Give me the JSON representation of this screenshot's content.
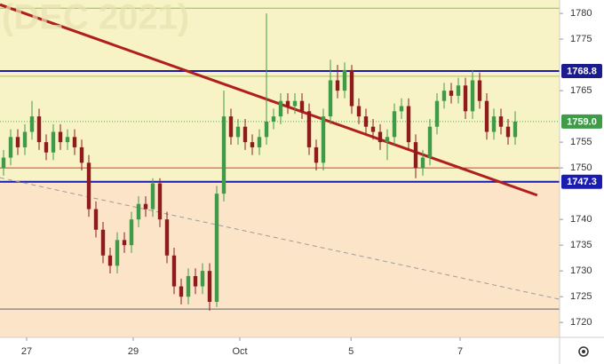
{
  "chart_data": {
    "type": "candlestick",
    "watermark": "(DEC 2021)",
    "open": [
      1750,
      1752,
      1756,
      1754,
      1757,
      1760,
      1755,
      1753,
      1757,
      1755,
      1756,
      1754,
      1751,
      1742,
      1738,
      1733,
      1731,
      1736,
      1735,
      1740,
      1743,
      1742,
      1747,
      1740,
      1733,
      1727,
      1725,
      1729,
      1727,
      1730,
      1724,
      1745,
      1760,
      1756,
      1758,
      1755,
      1754,
      1756,
      1759,
      1760,
      1763,
      1762,
      1763,
      1761,
      1754,
      1751,
      1760,
      1767,
      1765,
      1769,
      1762,
      1760,
      1758,
      1757,
      1755,
      1756,
      1761,
      1762,
      1755,
      1750,
      1752,
      1758,
      1763,
      1765,
      1764,
      1766,
      1761,
      1767,
      1763,
      1757,
      1760,
      1758,
      1756
    ],
    "high": [
      1753.5,
      1757.5,
      1757.5,
      1758.5,
      1763,
      1761.5,
      1756.5,
      1758.5,
      1758.5,
      1757.5,
      1757.5,
      1755.5,
      1752.5,
      1743.5,
      1739.5,
      1734.5,
      1737.5,
      1737.5,
      1741.5,
      1744.5,
      1744.5,
      1748,
      1748,
      1741.5,
      1734.5,
      1728.5,
      1730.5,
      1730.5,
      1731.5,
      1731.5,
      1746.5,
      1765,
      1761.5,
      1759.5,
      1759.5,
      1756.5,
      1757.5,
      1780,
      1761.5,
      1764.5,
      1764.5,
      1764.5,
      1764.5,
      1762.5,
      1755.5,
      1761.5,
      1771,
      1770,
      1770.5,
      1770,
      1763.5,
      1761.5,
      1759.5,
      1758.5,
      1757.5,
      1762.5,
      1763.5,
      1763.5,
      1756.5,
      1753.5,
      1759.5,
      1764.5,
      1766.5,
      1766.5,
      1767.5,
      1767.5,
      1769,
      1768.5,
      1764.5,
      1761.5,
      1761.5,
      1759.5,
      1761
    ],
    "low": [
      1748.5,
      1750.5,
      1752.5,
      1752.5,
      1755.5,
      1753.5,
      1751.5,
      1751.5,
      1753.5,
      1753.5,
      1752.5,
      1749.5,
      1740.5,
      1736.5,
      1731.5,
      1729.5,
      1729.5,
      1733.5,
      1733.5,
      1738.5,
      1740.5,
      1740.5,
      1738.5,
      1731.5,
      1725.5,
      1723.5,
      1723.5,
      1725.5,
      1725.5,
      1722.3,
      1723,
      1743.5,
      1754.5,
      1754.5,
      1753.5,
      1752.5,
      1752.5,
      1754.5,
      1757.5,
      1758.5,
      1760.5,
      1760.5,
      1759.5,
      1752.5,
      1749.5,
      1749.5,
      1758.5,
      1763.5,
      1763.5,
      1760.5,
      1758.5,
      1756.5,
      1755.5,
      1753.5,
      1751.5,
      1754.5,
      1759.5,
      1753.5,
      1748,
      1748.5,
      1750.5,
      1756.5,
      1761.5,
      1762.5,
      1762.5,
      1759.5,
      1759.5,
      1761.5,
      1755.5,
      1755.5,
      1756.5,
      1754.5,
      1754.5
    ],
    "close": [
      1752,
      1756,
      1754,
      1757,
      1760,
      1755,
      1753,
      1757,
      1755,
      1756,
      1754,
      1751,
      1742,
      1738,
      1733,
      1731,
      1736,
      1735,
      1740,
      1743,
      1742,
      1747,
      1740,
      1733,
      1727,
      1725,
      1729,
      1727,
      1730,
      1724,
      1745,
      1760,
      1756,
      1758,
      1755,
      1754,
      1756,
      1759,
      1760,
      1763,
      1762,
      1763,
      1761,
      1754,
      1751,
      1760,
      1767,
      1765,
      1769,
      1762,
      1760,
      1758,
      1757,
      1755,
      1756,
      1761,
      1762,
      1755,
      1750,
      1752,
      1758,
      1763,
      1765,
      1764,
      1766,
      1761,
      1767,
      1763,
      1757,
      1760,
      1758,
      1756,
      1759
    ],
    "up_color": "#3f9b48",
    "down_color": "#8e1c1c",
    "xlim": [
      -0.5,
      78.25
    ],
    "xticks": [
      {
        "value": 3.25,
        "label": "27"
      },
      {
        "value": 18.25,
        "label": "29"
      },
      {
        "value": 33.25,
        "label": "Oct"
      },
      {
        "value": 48.9,
        "label": "5"
      },
      {
        "value": 64.25,
        "label": "7"
      }
    ],
    "ylim": [
      1717.1,
      1782.6
    ],
    "yticks": [
      1720,
      1725,
      1730,
      1735,
      1740,
      1750,
      1755,
      1765,
      1775,
      1780
    ],
    "zones": [
      {
        "from": 1747.3,
        "to": 1782.6,
        "color": "#f7f3c6"
      },
      {
        "from": 1717.1,
        "to": 1747.3,
        "color": "#fbe4c7"
      }
    ],
    "hlines": [
      {
        "value": 1781,
        "color": "#8bc34a",
        "width": 1,
        "dash": false
      },
      {
        "value": 1767.8,
        "color": "#a5c94a",
        "width": 1,
        "dash": false
      },
      {
        "value": 1768.8,
        "color": "#1b1bb0",
        "width": 2,
        "dash": false
      },
      {
        "value": 1759,
        "color": "#4caf50",
        "width": 1,
        "dash": true
      },
      {
        "value": 1750,
        "color": "#d33b3b",
        "width": 1,
        "dash": false
      },
      {
        "value": 1747.3,
        "color": "#1b1bb0",
        "width": 2,
        "dash": false
      },
      {
        "value": 1722.6,
        "color": "#666666",
        "width": 1,
        "dash": false
      }
    ],
    "trendlines": [
      {
        "x": [
          -0.5,
          75.1
        ],
        "y": [
          1781.7,
          1744.7
        ],
        "color": "#b01e1e",
        "width": 3,
        "dash": false
      },
      {
        "x": [
          -0.5,
          78.25
        ],
        "y": [
          1748.1,
          1724.5
        ],
        "color": "#a09a9a",
        "width": 1,
        "dash": true
      }
    ],
    "price_labels": [
      {
        "value": 1768.8,
        "label": "1768.8",
        "color": "#1b1b8f"
      },
      {
        "value": 1759.0,
        "label": "1759.0",
        "color": "#3f9b48"
      },
      {
        "value": 1747.3,
        "label": "1747.3",
        "color": "#1b1bb0"
      }
    ]
  }
}
